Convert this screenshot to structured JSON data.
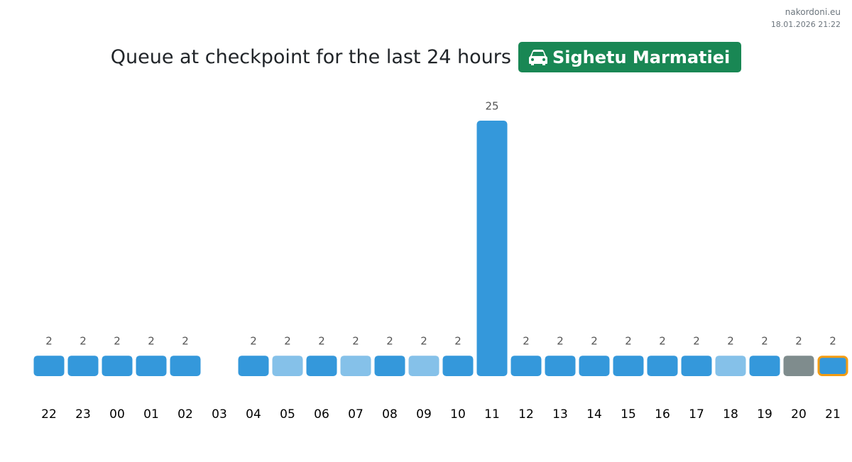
{
  "site": "nakordoni.eu",
  "timestamp": "18.01.2026 21:22",
  "chart_data": {
    "type": "bar",
    "title": "Queue at checkpoint for the last 24 hours",
    "checkpoint": "Sighetu Marmatiei",
    "categories": [
      "22",
      "23",
      "00",
      "01",
      "02",
      "03",
      "04",
      "05",
      "06",
      "07",
      "08",
      "09",
      "10",
      "11",
      "12",
      "13",
      "14",
      "15",
      "16",
      "17",
      "18",
      "19",
      "20",
      "21"
    ],
    "values": [
      2,
      2,
      2,
      2,
      2,
      null,
      2,
      2,
      2,
      2,
      2,
      2,
      2,
      25,
      2,
      2,
      2,
      2,
      2,
      2,
      2,
      2,
      2,
      2
    ],
    "colors": [
      "#3498db",
      "#3498db",
      "#3498db",
      "#3498db",
      "#3498db",
      null,
      "#3498db",
      "#85c1e9",
      "#3498db",
      "#85c1e9",
      "#3498db",
      "#85c1e9",
      "#3498db",
      "#3498db",
      "#3498db",
      "#3498db",
      "#3498db",
      "#3498db",
      "#3498db",
      "#3498db",
      "#85c1e9",
      "#3498db",
      "#7f8c8d",
      "#3498db"
    ],
    "outline_colors": [
      null,
      null,
      null,
      null,
      null,
      null,
      null,
      null,
      null,
      null,
      null,
      null,
      null,
      null,
      null,
      null,
      null,
      null,
      null,
      null,
      null,
      null,
      null,
      "#f39c12"
    ],
    "ylim": [
      0,
      25
    ]
  }
}
